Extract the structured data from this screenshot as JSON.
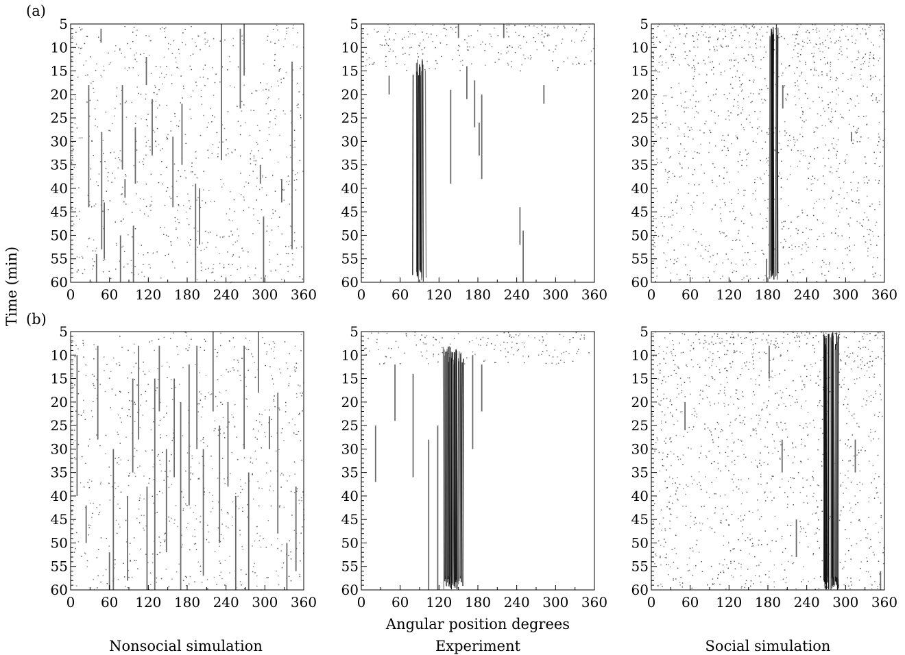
{
  "figure": {
    "shared_ylabel": "Time (min)",
    "shared_xlabel": "Angular position degrees",
    "column_titles": [
      "Nonsocial simulation",
      "Experiment",
      "Social simulation"
    ],
    "row_labels": [
      "(a)",
      "(b)"
    ]
  },
  "chart_data": [
    {
      "type": "scatter",
      "row": "(a)",
      "column": "Nonsocial simulation",
      "x_ticks": [
        0,
        60,
        120,
        180,
        240,
        300,
        360
      ],
      "xlim": [
        0,
        360
      ],
      "y_ticks": [
        5,
        10,
        15,
        20,
        25,
        30,
        35,
        40,
        45,
        50,
        55,
        60
      ],
      "ylim": [
        5,
        60
      ],
      "y_inverted": true,
      "streaks": [
        {
          "x": 28,
          "t_start": 18,
          "t_end": 44
        },
        {
          "x": 40,
          "t_start": 54,
          "t_end": 60
        },
        {
          "x": 47,
          "t_start": 6,
          "t_end": 9
        },
        {
          "x": 48,
          "t_start": 28,
          "t_end": 53
        },
        {
          "x": 52,
          "t_start": 43,
          "t_end": 55
        },
        {
          "x": 77,
          "t_start": 50,
          "t_end": 60
        },
        {
          "x": 80,
          "t_start": 18,
          "t_end": 36
        },
        {
          "x": 84,
          "t_start": 38,
          "t_end": 42
        },
        {
          "x": 97,
          "t_start": 48,
          "t_end": 60
        },
        {
          "x": 100,
          "t_start": 27,
          "t_end": 39
        },
        {
          "x": 117,
          "t_start": 12,
          "t_end": 18
        },
        {
          "x": 126,
          "t_start": 21,
          "t_end": 33
        },
        {
          "x": 158,
          "t_start": 29,
          "t_end": 44
        },
        {
          "x": 172,
          "t_start": 22,
          "t_end": 35
        },
        {
          "x": 193,
          "t_start": 39,
          "t_end": 60
        },
        {
          "x": 199,
          "t_start": 40,
          "t_end": 52
        },
        {
          "x": 233,
          "t_start": 5,
          "t_end": 34
        },
        {
          "x": 262,
          "t_start": 6,
          "t_end": 23
        },
        {
          "x": 268,
          "t_start": 5,
          "t_end": 16
        },
        {
          "x": 293,
          "t_start": 35,
          "t_end": 39
        },
        {
          "x": 298,
          "t_start": 46,
          "t_end": 60
        },
        {
          "x": 326,
          "t_start": 38,
          "t_end": 43
        },
        {
          "x": 342,
          "t_start": 13,
          "t_end": 53
        }
      ],
      "sparse_points": {
        "t_range": [
          5,
          60
        ],
        "x_range": [
          0,
          360
        ]
      }
    },
    {
      "type": "scatter",
      "row": "(a)",
      "column": "Experiment",
      "x_ticks": [
        0,
        60,
        120,
        180,
        240,
        300,
        360
      ],
      "xlim": [
        0,
        360
      ],
      "y_ticks": [
        5,
        10,
        15,
        20,
        25,
        30,
        35,
        40,
        45,
        50,
        55,
        60
      ],
      "ylim": [
        5,
        60
      ],
      "y_inverted": true,
      "cluster": {
        "center_start": 96,
        "center_end": 85,
        "width": 12,
        "t_start": 12,
        "t_end": 60
      },
      "streaks": [
        {
          "x": 43,
          "t_start": 16,
          "t_end": 20
        },
        {
          "x": 138,
          "t_start": 19,
          "t_end": 39
        },
        {
          "x": 150,
          "t_start": 5,
          "t_end": 8
        },
        {
          "x": 163,
          "t_start": 14,
          "t_end": 21
        },
        {
          "x": 175,
          "t_start": 17,
          "t_end": 27
        },
        {
          "x": 182,
          "t_start": 26,
          "t_end": 33
        },
        {
          "x": 186,
          "t_start": 20,
          "t_end": 38
        },
        {
          "x": 220,
          "t_start": 5,
          "t_end": 8
        },
        {
          "x": 245,
          "t_start": 44,
          "t_end": 52
        },
        {
          "x": 250,
          "t_start": 49,
          "t_end": 60
        },
        {
          "x": 282,
          "t_start": 18,
          "t_end": 22
        }
      ],
      "sparse_points": {
        "t_range": [
          5,
          15
        ],
        "x_range": [
          0,
          360
        ]
      }
    },
    {
      "type": "scatter",
      "row": "(a)",
      "column": "Social simulation",
      "x_ticks": [
        0,
        60,
        120,
        180,
        240,
        300,
        360
      ],
      "xlim": [
        0,
        360
      ],
      "y_ticks": [
        5,
        10,
        15,
        20,
        25,
        30,
        35,
        40,
        45,
        50,
        55,
        60
      ],
      "ylim": [
        5,
        60
      ],
      "y_inverted": true,
      "cluster": {
        "center_start": 190,
        "center_end": 188,
        "width": 12,
        "t_start": 5,
        "t_end": 60
      },
      "streaks": [
        {
          "x": 178,
          "t_start": 55,
          "t_end": 60
        },
        {
          "x": 203,
          "t_start": 18,
          "t_end": 23
        },
        {
          "x": 309,
          "t_start": 28,
          "t_end": 30
        }
      ],
      "sparse_points": {
        "t_range": [
          5,
          60
        ],
        "x_range": [
          0,
          360
        ]
      }
    },
    {
      "type": "scatter",
      "row": "(b)",
      "column": "Nonsocial simulation",
      "x_ticks": [
        0,
        60,
        120,
        180,
        240,
        300,
        360
      ],
      "xlim": [
        0,
        360
      ],
      "y_ticks": [
        5,
        10,
        15,
        20,
        25,
        30,
        35,
        40,
        45,
        50,
        55,
        60
      ],
      "ylim": [
        5,
        60
      ],
      "y_inverted": true,
      "streaks": [
        {
          "x": 10,
          "t_start": 10,
          "t_end": 40
        },
        {
          "x": 24,
          "t_start": 42,
          "t_end": 50
        },
        {
          "x": 42,
          "t_start": 8,
          "t_end": 28
        },
        {
          "x": 60,
          "t_start": 52,
          "t_end": 60
        },
        {
          "x": 66,
          "t_start": 30,
          "t_end": 60
        },
        {
          "x": 88,
          "t_start": 40,
          "t_end": 58
        },
        {
          "x": 96,
          "t_start": 15,
          "t_end": 35
        },
        {
          "x": 105,
          "t_start": 8,
          "t_end": 28
        },
        {
          "x": 118,
          "t_start": 38,
          "t_end": 60
        },
        {
          "x": 130,
          "t_start": 15,
          "t_end": 60
        },
        {
          "x": 137,
          "t_start": 8,
          "t_end": 22
        },
        {
          "x": 148,
          "t_start": 30,
          "t_end": 52
        },
        {
          "x": 160,
          "t_start": 15,
          "t_end": 36
        },
        {
          "x": 170,
          "t_start": 20,
          "t_end": 60
        },
        {
          "x": 183,
          "t_start": 12,
          "t_end": 42
        },
        {
          "x": 195,
          "t_start": 8,
          "t_end": 30
        },
        {
          "x": 205,
          "t_start": 30,
          "t_end": 57
        },
        {
          "x": 220,
          "t_start": 5,
          "t_end": 22
        },
        {
          "x": 230,
          "t_start": 25,
          "t_end": 50
        },
        {
          "x": 243,
          "t_start": 20,
          "t_end": 38
        },
        {
          "x": 255,
          "t_start": 40,
          "t_end": 60
        },
        {
          "x": 268,
          "t_start": 8,
          "t_end": 30
        },
        {
          "x": 275,
          "t_start": 35,
          "t_end": 60
        },
        {
          "x": 290,
          "t_start": 5,
          "t_end": 18
        },
        {
          "x": 307,
          "t_start": 23,
          "t_end": 30
        },
        {
          "x": 320,
          "t_start": 18,
          "t_end": 48
        },
        {
          "x": 334,
          "t_start": 50,
          "t_end": 60
        },
        {
          "x": 348,
          "t_start": 38,
          "t_end": 56
        }
      ],
      "sparse_points": {
        "t_range": [
          5,
          60
        ],
        "x_range": [
          0,
          360
        ]
      }
    },
    {
      "type": "scatter",
      "row": "(b)",
      "column": "Experiment",
      "x_ticks": [
        0,
        60,
        120,
        180,
        240,
        300,
        360
      ],
      "xlim": [
        0,
        360
      ],
      "y_ticks": [
        5,
        10,
        15,
        20,
        25,
        30,
        35,
        40,
        45,
        50,
        55,
        60
      ],
      "ylim": [
        5,
        60
      ],
      "y_inverted": true,
      "cluster": {
        "center_start": 140,
        "center_end": 145,
        "width": 30,
        "t_start": 8,
        "t_end": 60
      },
      "streaks": [
        {
          "x": 22,
          "t_start": 25,
          "t_end": 37
        },
        {
          "x": 52,
          "t_start": 12,
          "t_end": 24
        },
        {
          "x": 80,
          "t_start": 14,
          "t_end": 36
        },
        {
          "x": 104,
          "t_start": 28,
          "t_end": 60
        },
        {
          "x": 118,
          "t_start": 25,
          "t_end": 60
        },
        {
          "x": 172,
          "t_start": 10,
          "t_end": 30
        },
        {
          "x": 186,
          "t_start": 12,
          "t_end": 22
        }
      ],
      "sparse_points": {
        "t_range": [
          5,
          12
        ],
        "x_range": [
          0,
          360
        ]
      }
    },
    {
      "type": "scatter",
      "row": "(b)",
      "column": "Social simulation",
      "x_ticks": [
        0,
        60,
        120,
        180,
        240,
        300,
        360
      ],
      "xlim": [
        0,
        360
      ],
      "y_ticks": [
        5,
        10,
        15,
        20,
        25,
        30,
        35,
        40,
        45,
        50,
        55,
        60
      ],
      "ylim": [
        5,
        60
      ],
      "y_inverted": true,
      "cluster": {
        "center_start": 278,
        "center_end": 278,
        "width": 25,
        "t_start": 5,
        "t_end": 60
      },
      "streaks": [
        {
          "x": 52,
          "t_start": 20,
          "t_end": 26
        },
        {
          "x": 182,
          "t_start": 8,
          "t_end": 15
        },
        {
          "x": 202,
          "t_start": 28,
          "t_end": 35
        },
        {
          "x": 224,
          "t_start": 45,
          "t_end": 53
        },
        {
          "x": 315,
          "t_start": 28,
          "t_end": 35
        },
        {
          "x": 354,
          "t_start": 56,
          "t_end": 60
        }
      ],
      "sparse_points": {
        "t_range": [
          5,
          60
        ],
        "x_range": [
          0,
          360
        ]
      }
    }
  ]
}
